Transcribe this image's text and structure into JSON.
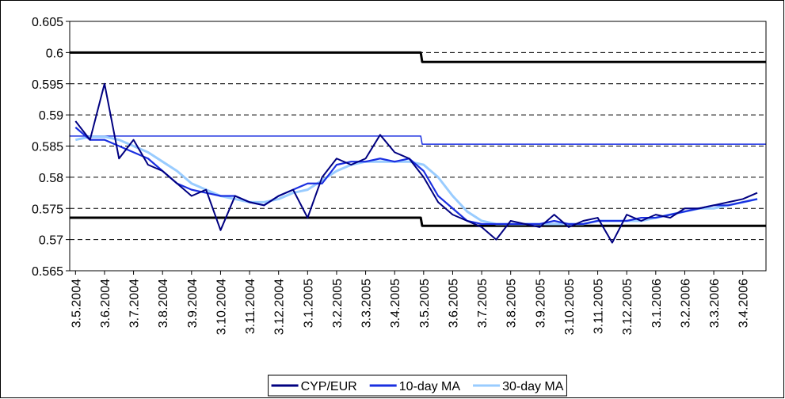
{
  "chart_data": {
    "type": "line",
    "x": [
      0,
      0.5,
      1,
      1.5,
      2,
      2.5,
      3,
      3.5,
      4,
      4.5,
      5,
      5.5,
      6,
      6.5,
      7,
      7.5,
      8,
      8.5,
      9,
      9.5,
      10,
      10.5,
      11,
      11.5,
      12,
      12.5,
      13,
      13.5,
      14,
      14.5,
      15,
      15.5,
      16,
      16.5,
      17,
      17.5,
      18,
      18.5,
      19,
      19.5,
      20,
      20.5,
      21,
      21.5,
      22,
      22.5,
      23,
      23.5
    ],
    "series": [
      {
        "name": "CYP/EUR",
        "color": "#000080",
        "values": [
          0.589,
          0.586,
          0.595,
          0.583,
          0.586,
          0.582,
          0.581,
          0.579,
          0.577,
          0.578,
          0.5715,
          0.577,
          0.576,
          0.5755,
          0.577,
          0.578,
          0.5735,
          0.58,
          0.583,
          0.582,
          0.583,
          0.5868,
          0.584,
          0.583,
          0.58,
          0.576,
          0.574,
          0.573,
          0.572,
          0.57,
          0.573,
          0.5725,
          0.572,
          0.574,
          0.572,
          0.573,
          0.5735,
          0.5695,
          0.574,
          0.573,
          0.574,
          0.5735,
          0.575,
          0.575,
          0.5755,
          0.576,
          0.5765,
          0.5775
        ]
      },
      {
        "name": "10-day MA",
        "color": "#1a2fe0",
        "values": [
          0.588,
          0.586,
          0.586,
          0.585,
          0.584,
          0.583,
          0.581,
          0.579,
          0.578,
          0.5775,
          0.577,
          0.577,
          0.576,
          0.5755,
          0.577,
          0.578,
          0.579,
          0.579,
          0.582,
          0.5825,
          0.5825,
          0.583,
          0.5825,
          0.583,
          0.581,
          0.577,
          0.575,
          0.573,
          0.5725,
          0.5725,
          0.5725,
          0.5725,
          0.5725,
          0.573,
          0.5725,
          0.5725,
          0.573,
          0.573,
          0.573,
          0.5735,
          0.5735,
          0.574,
          0.5745,
          0.575,
          0.5755,
          0.5755,
          0.576,
          0.5765
        ]
      },
      {
        "name": "30-day MA",
        "color": "#99ccff",
        "values": [
          0.586,
          0.5865,
          0.5865,
          0.586,
          0.585,
          0.584,
          0.5825,
          0.581,
          0.579,
          0.578,
          0.577,
          0.5765,
          0.576,
          0.576,
          0.5765,
          0.5775,
          0.578,
          0.5795,
          0.581,
          0.582,
          0.5825,
          0.5825,
          0.5825,
          0.5825,
          0.582,
          0.58,
          0.577,
          0.5745,
          0.573,
          0.5725,
          0.5725,
          0.5725,
          0.5725,
          0.5725,
          0.5725,
          0.5725,
          0.573,
          0.573,
          0.573,
          0.573,
          0.5735,
          0.574,
          0.5745,
          0.575,
          0.575,
          0.5755,
          0.576,
          0.5765
        ]
      }
    ],
    "bands": [
      {
        "color": "#000000",
        "x": [
          -0.2,
          11.9,
          11.95,
          23.8
        ],
        "values": [
          0.6,
          0.6,
          0.5985,
          0.5985
        ]
      },
      {
        "color": "#1a2fe0",
        "x": [
          -0.2,
          11.9,
          11.95,
          23.8
        ],
        "values": [
          0.5866,
          0.5866,
          0.5853,
          0.5853
        ]
      },
      {
        "color": "#000000",
        "x": [
          -0.2,
          11.9,
          11.95,
          23.8
        ],
        "values": [
          0.5735,
          0.5735,
          0.5722,
          0.5722
        ]
      }
    ],
    "xlim": [
      -0.2,
      23.8
    ],
    "xticks": [
      {
        "value": 0,
        "label": "3.5.2004"
      },
      {
        "value": 1,
        "label": "3.6.2004"
      },
      {
        "value": 2,
        "label": "3.7.2004"
      },
      {
        "value": 3,
        "label": "3.8.2004"
      },
      {
        "value": 4,
        "label": "3.9.2004"
      },
      {
        "value": 5,
        "label": "3.10.2004"
      },
      {
        "value": 6,
        "label": "3.11.2004"
      },
      {
        "value": 7,
        "label": "3.12.2004"
      },
      {
        "value": 8,
        "label": "3.1.2005"
      },
      {
        "value": 9,
        "label": "3.2.2005"
      },
      {
        "value": 10,
        "label": "3.3.2005"
      },
      {
        "value": 11,
        "label": "3.4.2005"
      },
      {
        "value": 12,
        "label": "3.5.2005"
      },
      {
        "value": 13,
        "label": "3.6.2005"
      },
      {
        "value": 14,
        "label": "3.7.2005"
      },
      {
        "value": 15,
        "label": "3.8.2005"
      },
      {
        "value": 16,
        "label": "3.9.2005"
      },
      {
        "value": 17,
        "label": "3.10.2005"
      },
      {
        "value": 18,
        "label": "3.11.2005"
      },
      {
        "value": 19,
        "label": "3.12.2005"
      },
      {
        "value": 20,
        "label": "3.1.2006"
      },
      {
        "value": 21,
        "label": "3.2.2006"
      },
      {
        "value": 22,
        "label": "3.3.2006"
      },
      {
        "value": 23,
        "label": "3.4.2006"
      }
    ],
    "ylim": [
      0.565,
      0.605
    ],
    "yticks": [
      0.565,
      0.57,
      0.575,
      0.58,
      0.585,
      0.59,
      0.595,
      0.6,
      0.605
    ],
    "grid": true
  }
}
